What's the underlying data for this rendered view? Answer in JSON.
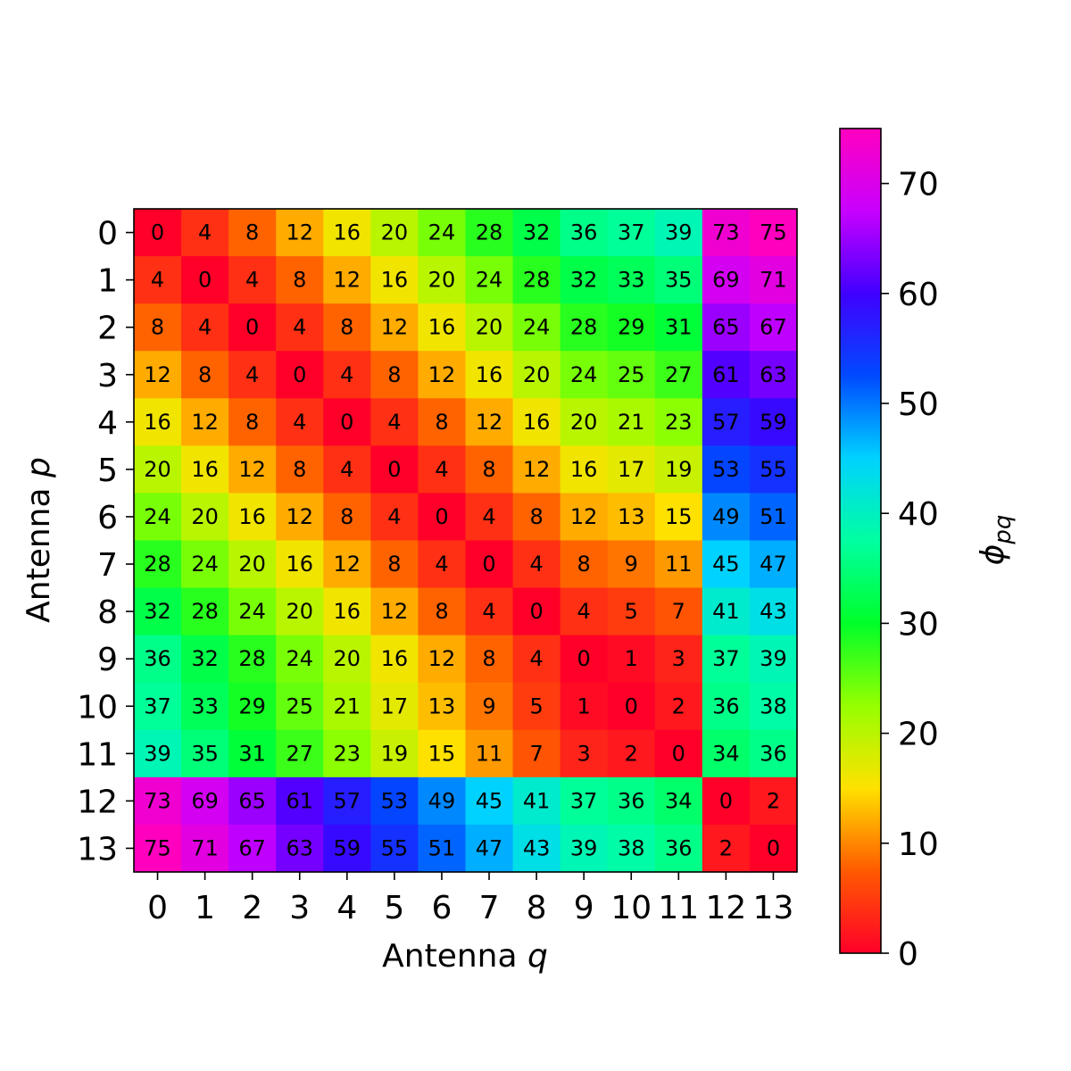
{
  "chart_data": {
    "type": "heatmap",
    "xlabel": "Antenna",
    "xlabel_var": "q",
    "ylabel": "Antenna",
    "ylabel_var": "p",
    "x_ticks": [
      "0",
      "1",
      "2",
      "3",
      "4",
      "5",
      "6",
      "7",
      "8",
      "9",
      "10",
      "11",
      "12",
      "13"
    ],
    "y_ticks": [
      "0",
      "1",
      "2",
      "3",
      "4",
      "5",
      "6",
      "7",
      "8",
      "9",
      "10",
      "11",
      "12",
      "13"
    ],
    "colorbar": {
      "label_symbol": "ϕ",
      "label_subscript": "pq",
      "vmin": 0,
      "vmax": 75,
      "ticks": [
        "0",
        "10",
        "20",
        "30",
        "40",
        "50",
        "60",
        "70"
      ],
      "colormap": "gist_rainbow_r"
    },
    "values": [
      [
        0,
        4,
        8,
        12,
        16,
        20,
        24,
        28,
        32,
        36,
        37,
        39,
        73,
        75
      ],
      [
        4,
        0,
        4,
        8,
        12,
        16,
        20,
        24,
        28,
        32,
        33,
        35,
        69,
        71
      ],
      [
        8,
        4,
        0,
        4,
        8,
        12,
        16,
        20,
        24,
        28,
        29,
        31,
        65,
        67
      ],
      [
        12,
        8,
        4,
        0,
        4,
        8,
        12,
        16,
        20,
        24,
        25,
        27,
        61,
        63
      ],
      [
        16,
        12,
        8,
        4,
        0,
        4,
        8,
        12,
        16,
        20,
        21,
        23,
        57,
        59
      ],
      [
        20,
        16,
        12,
        8,
        4,
        0,
        4,
        8,
        12,
        16,
        17,
        19,
        53,
        55
      ],
      [
        24,
        20,
        16,
        12,
        8,
        4,
        0,
        4,
        8,
        12,
        13,
        15,
        49,
        51
      ],
      [
        28,
        24,
        20,
        16,
        12,
        8,
        4,
        0,
        4,
        8,
        9,
        11,
        45,
        47
      ],
      [
        32,
        28,
        24,
        20,
        16,
        12,
        8,
        4,
        0,
        4,
        5,
        7,
        41,
        43
      ],
      [
        36,
        32,
        28,
        24,
        20,
        16,
        12,
        8,
        4,
        0,
        1,
        3,
        37,
        39
      ],
      [
        37,
        33,
        29,
        25,
        21,
        17,
        13,
        9,
        5,
        1,
        0,
        2,
        36,
        38
      ],
      [
        39,
        35,
        31,
        27,
        23,
        19,
        15,
        11,
        7,
        3,
        2,
        0,
        34,
        36
      ],
      [
        73,
        69,
        65,
        61,
        57,
        53,
        49,
        45,
        41,
        37,
        36,
        34,
        0,
        2
      ],
      [
        75,
        71,
        67,
        63,
        59,
        55,
        51,
        47,
        43,
        39,
        38,
        36,
        2,
        0
      ]
    ]
  }
}
